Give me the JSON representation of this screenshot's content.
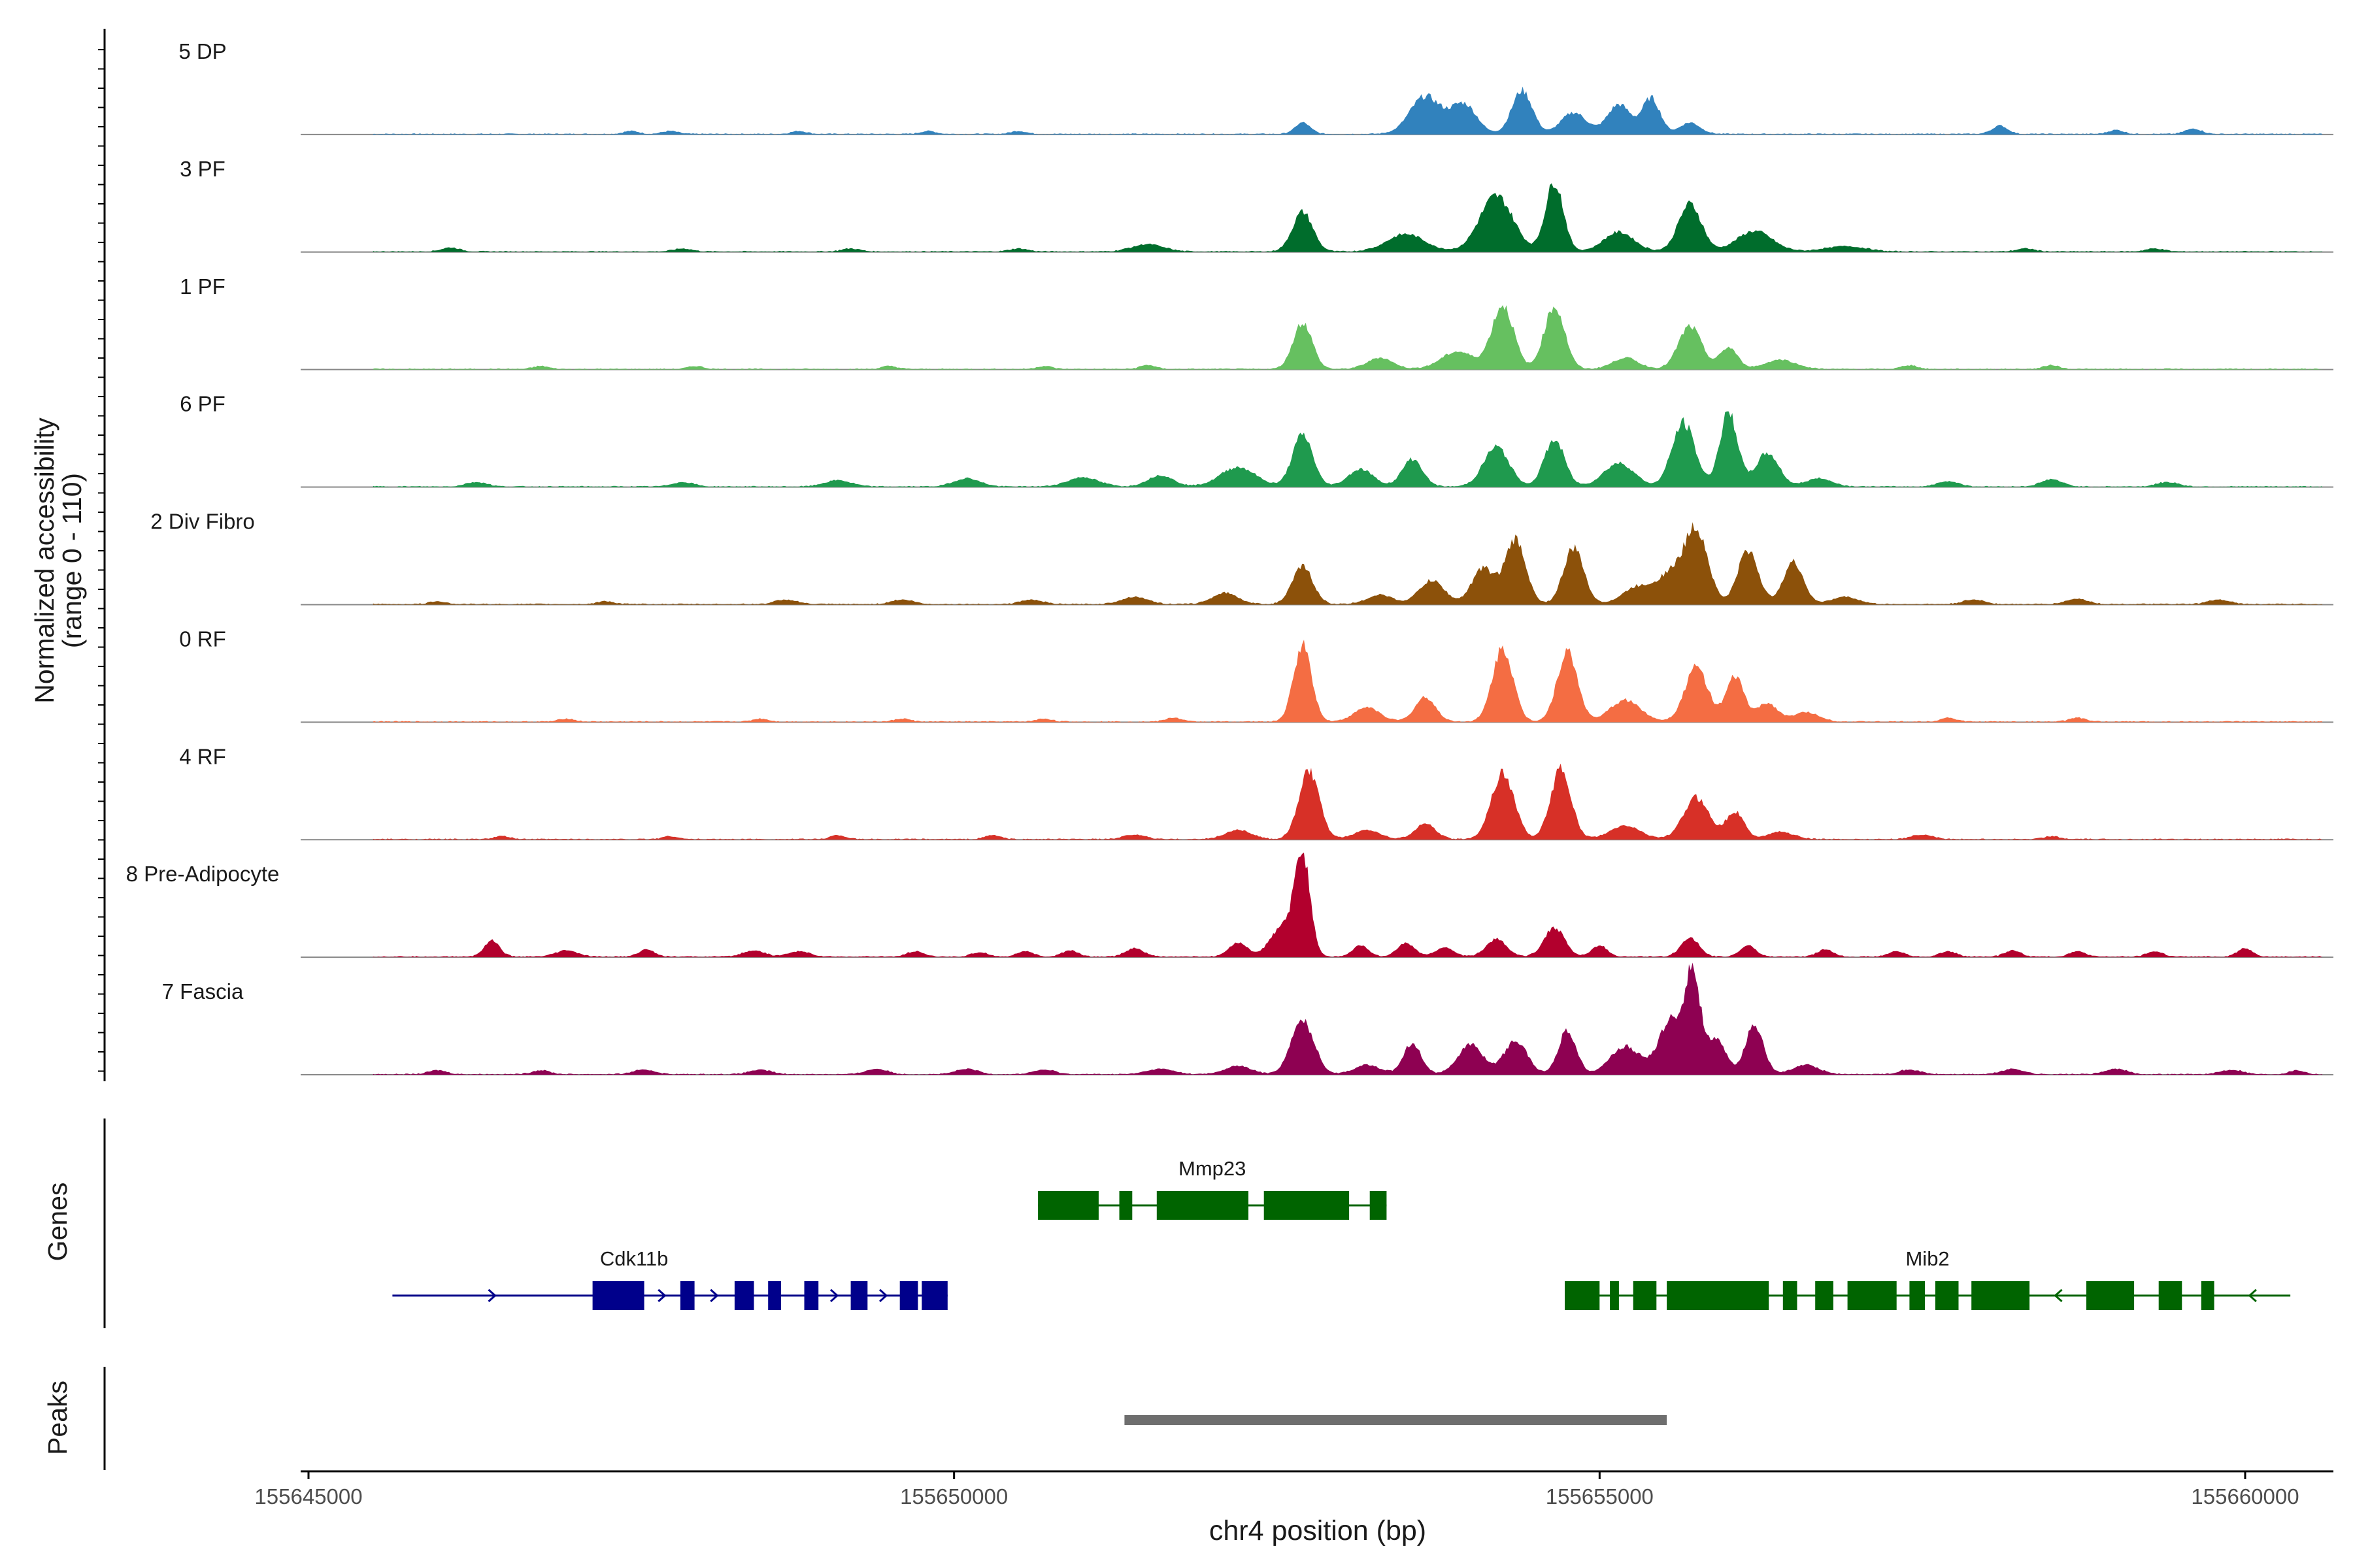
{
  "chart_data": {
    "type": "area",
    "title": "",
    "xlabel": "chr4 position (bp)",
    "ylabel_line1": "Normalized accessibility",
    "ylabel_line2": "(range 0 - 110)",
    "ylim": [
      0,
      110
    ],
    "xlim": [
      155644900,
      155661200
    ],
    "x_ticks": [
      155645000,
      155650000,
      155655000,
      155660000
    ],
    "x_tick_labels": [
      "155645000",
      "155650000",
      "155655000",
      "155660000"
    ],
    "gene_panel_title": "Genes",
    "peak_panel_title": "Peaks",
    "tracks": [
      {
        "name": "5 DP",
        "color": "#3182bd",
        "peaks": [
          [
            155647500,
            3,
            60
          ],
          [
            155647800,
            3,
            60
          ],
          [
            155648800,
            3,
            60
          ],
          [
            155649800,
            3,
            60
          ],
          [
            155650500,
            3,
            60
          ],
          [
            155652700,
            12,
            60
          ],
          [
            155653650,
            38,
            120
          ],
          [
            155653950,
            30,
            100
          ],
          [
            155654400,
            44,
            80
          ],
          [
            155654800,
            22,
            100
          ],
          [
            155655150,
            30,
            90
          ],
          [
            155655400,
            36,
            70
          ],
          [
            155655700,
            12,
            80
          ],
          [
            155658100,
            9,
            60
          ],
          [
            155659000,
            4,
            60
          ],
          [
            155659600,
            6,
            60
          ]
        ]
      },
      {
        "name": "3 PF",
        "color": "#006d2c",
        "peaks": [
          [
            155646100,
            4,
            70
          ],
          [
            155647900,
            3,
            70
          ],
          [
            155649200,
            3,
            70
          ],
          [
            155650500,
            3,
            70
          ],
          [
            155651500,
            8,
            120
          ],
          [
            155652700,
            40,
            80
          ],
          [
            155653500,
            18,
            150
          ],
          [
            155654200,
            56,
            130
          ],
          [
            155654650,
            70,
            70
          ],
          [
            155655150,
            20,
            120
          ],
          [
            155655700,
            48,
            90
          ],
          [
            155656200,
            21,
            140
          ],
          [
            155656900,
            6,
            150
          ],
          [
            155658300,
            3,
            70
          ],
          [
            155659300,
            3,
            70
          ]
        ]
      },
      {
        "name": "1 PF",
        "color": "#66c060",
        "peaks": [
          [
            155646800,
            3,
            60
          ],
          [
            155648000,
            3,
            60
          ],
          [
            155649500,
            3,
            60
          ],
          [
            155650700,
            3,
            60
          ],
          [
            155651500,
            4,
            60
          ],
          [
            155652700,
            47,
            75
          ],
          [
            155653300,
            12,
            100
          ],
          [
            155653900,
            18,
            130
          ],
          [
            155654250,
            64,
            85
          ],
          [
            155654650,
            63,
            80
          ],
          [
            155655200,
            12,
            100
          ],
          [
            155655700,
            43,
            90
          ],
          [
            155656000,
            22,
            70
          ],
          [
            155656400,
            10,
            120
          ],
          [
            155657400,
            4,
            60
          ],
          [
            155658500,
            4,
            60
          ]
        ]
      },
      {
        "name": "6 PF",
        "color": "#1f9a4e",
        "peaks": [
          [
            155646300,
            5,
            80
          ],
          [
            155647900,
            5,
            80
          ],
          [
            155649100,
            7,
            100
          ],
          [
            155650100,
            9,
            100
          ],
          [
            155651000,
            10,
            120
          ],
          [
            155651600,
            12,
            100
          ],
          [
            155652200,
            20,
            140
          ],
          [
            155652700,
            52,
            80
          ],
          [
            155653150,
            18,
            100
          ],
          [
            155653550,
            28,
            80
          ],
          [
            155654200,
            40,
            100
          ],
          [
            155654650,
            47,
            80
          ],
          [
            155655150,
            24,
            120
          ],
          [
            155655650,
            64,
            90
          ],
          [
            155656000,
            74,
            70
          ],
          [
            155656300,
            34,
            90
          ],
          [
            155656700,
            9,
            100
          ],
          [
            155657700,
            6,
            80
          ],
          [
            155658500,
            8,
            80
          ],
          [
            155659400,
            5,
            80
          ]
        ]
      },
      {
        "name": "2 Div Fibro",
        "color": "#8c510a",
        "peaks": [
          [
            155646000,
            3,
            60
          ],
          [
            155647300,
            3,
            60
          ],
          [
            155648700,
            5,
            80
          ],
          [
            155649600,
            5,
            80
          ],
          [
            155650600,
            5,
            80
          ],
          [
            155651400,
            8,
            100
          ],
          [
            155652100,
            12,
            100
          ],
          [
            155652700,
            38,
            80
          ],
          [
            155653300,
            10,
            100
          ],
          [
            155653700,
            24,
            100
          ],
          [
            155654100,
            36,
            90
          ],
          [
            155654350,
            64,
            80
          ],
          [
            155654800,
            56,
            80
          ],
          [
            155655300,
            18,
            120
          ],
          [
            155655550,
            28,
            100
          ],
          [
            155655750,
            74,
            90
          ],
          [
            155656150,
            54,
            80
          ],
          [
            155656500,
            42,
            80
          ],
          [
            155656900,
            8,
            100
          ],
          [
            155657900,
            5,
            80
          ],
          [
            155658700,
            6,
            80
          ],
          [
            155659800,
            5,
            80
          ]
        ]
      },
      {
        "name": "0 RF",
        "color": "#f46d43",
        "peaks": [
          [
            155647000,
            3,
            60
          ],
          [
            155648500,
            3,
            60
          ],
          [
            155649600,
            3,
            60
          ],
          [
            155650700,
            3,
            60
          ],
          [
            155651700,
            4,
            60
          ],
          [
            155652700,
            77,
            70
          ],
          [
            155653200,
            15,
            100
          ],
          [
            155653650,
            25,
            80
          ],
          [
            155654250,
            74,
            80
          ],
          [
            155654750,
            70,
            80
          ],
          [
            155655200,
            22,
            120
          ],
          [
            155655750,
            55,
            90
          ],
          [
            155656050,
            45,
            70
          ],
          [
            155656300,
            19,
            80
          ],
          [
            155656600,
            10,
            100
          ],
          [
            155657700,
            4,
            60
          ],
          [
            155658700,
            4,
            60
          ]
        ]
      },
      {
        "name": "4 RF",
        "color": "#d73027",
        "peaks": [
          [
            155646500,
            3,
            60
          ],
          [
            155647800,
            3,
            60
          ],
          [
            155649100,
            4,
            60
          ],
          [
            155650300,
            4,
            60
          ],
          [
            155651400,
            5,
            80
          ],
          [
            155652200,
            10,
            100
          ],
          [
            155652750,
            68,
            80
          ],
          [
            155653200,
            10,
            100
          ],
          [
            155653650,
            16,
            80
          ],
          [
            155654250,
            66,
            90
          ],
          [
            155654700,
            70,
            80
          ],
          [
            155655200,
            14,
            120
          ],
          [
            155655750,
            42,
            100
          ],
          [
            155656050,
            28,
            70
          ],
          [
            155656400,
            8,
            100
          ],
          [
            155657500,
            5,
            80
          ],
          [
            155658500,
            3,
            60
          ]
        ]
      },
      {
        "name": "8 Pre-Adipocyte",
        "color": "#b2002d",
        "peaks": [
          [
            155646420,
            17,
            60
          ],
          [
            155647000,
            7,
            80
          ],
          [
            155647620,
            8,
            60
          ],
          [
            155648450,
            7,
            80
          ],
          [
            155648800,
            6,
            80
          ],
          [
            155649700,
            6,
            60
          ],
          [
            155650200,
            5,
            60
          ],
          [
            155650550,
            6,
            60
          ],
          [
            155650900,
            7,
            60
          ],
          [
            155651400,
            9,
            70
          ],
          [
            155652200,
            15,
            70
          ],
          [
            155652550,
            30,
            100
          ],
          [
            155652700,
            95,
            60
          ],
          [
            155653150,
            12,
            60
          ],
          [
            155653500,
            14,
            70
          ],
          [
            155653800,
            10,
            70
          ],
          [
            155654200,
            18,
            80
          ],
          [
            155654650,
            30,
            80
          ],
          [
            155655000,
            12,
            60
          ],
          [
            155655700,
            20,
            70
          ],
          [
            155656150,
            12,
            60
          ],
          [
            155656750,
            8,
            60
          ],
          [
            155657300,
            6,
            60
          ],
          [
            155657700,
            6,
            60
          ],
          [
            155658200,
            7,
            60
          ],
          [
            155658700,
            6,
            60
          ],
          [
            155659300,
            6,
            60
          ],
          [
            155660000,
            9,
            60
          ]
        ]
      },
      {
        "name": "7 Fascia",
        "color": "#8e0152",
        "peaks": [
          [
            155646000,
            4,
            70
          ],
          [
            155646800,
            4,
            70
          ],
          [
            155647600,
            5,
            80
          ],
          [
            155648500,
            5,
            80
          ],
          [
            155649400,
            6,
            80
          ],
          [
            155650100,
            6,
            80
          ],
          [
            155650700,
            5,
            80
          ],
          [
            155651600,
            6,
            100
          ],
          [
            155652200,
            9,
            100
          ],
          [
            155652700,
            54,
            90
          ],
          [
            155653200,
            10,
            100
          ],
          [
            155653550,
            32,
            70
          ],
          [
            155654000,
            30,
            100
          ],
          [
            155654350,
            34,
            90
          ],
          [
            155654750,
            44,
            70
          ],
          [
            155655200,
            28,
            120
          ],
          [
            155655550,
            54,
            90
          ],
          [
            155655720,
            96,
            60
          ],
          [
            155655900,
            34,
            80
          ],
          [
            155656200,
            50,
            70
          ],
          [
            155656600,
            10,
            100
          ],
          [
            155657400,
            5,
            80
          ],
          [
            155658200,
            6,
            80
          ],
          [
            155659000,
            6,
            80
          ],
          [
            155659900,
            5,
            80
          ],
          [
            155660400,
            4,
            60
          ]
        ]
      }
    ],
    "genes": [
      {
        "name": "Mmp23",
        "row": 0,
        "strand": "+",
        "start": 155650650,
        "end": 155653350,
        "color": "#006400",
        "exons": [
          [
            155650650,
            155651120
          ],
          [
            155651280,
            155651380
          ],
          [
            155651570,
            155652280
          ],
          [
            155652400,
            155653060
          ],
          [
            155653220,
            155653350
          ]
        ]
      },
      {
        "name": "Cdk11b",
        "row": 1,
        "strand": "+",
        "start": 155645650,
        "end": 155649950,
        "color": "#00008b",
        "exons": [
          [
            155647200,
            155647600
          ],
          [
            155647880,
            155647990
          ],
          [
            155648300,
            155648450
          ],
          [
            155648560,
            155648660
          ],
          [
            155648840,
            155648950
          ],
          [
            155649200,
            155649330
          ],
          [
            155649580,
            155649720
          ],
          [
            155649750,
            155649950
          ]
        ]
      },
      {
        "name": "Mib2",
        "row": 1,
        "strand": "-",
        "start": 155654730,
        "end": 155660350,
        "color": "#006400",
        "exons": [
          [
            155654730,
            155655000
          ],
          [
            155655080,
            155655150
          ],
          [
            155655260,
            155655440
          ],
          [
            155655520,
            155656310
          ],
          [
            155656420,
            155656530
          ],
          [
            155656670,
            155656810
          ],
          [
            155656920,
            155657300
          ],
          [
            155657400,
            155657520
          ],
          [
            155657600,
            155657780
          ],
          [
            155657880,
            155658330
          ],
          [
            155658770,
            155659140
          ],
          [
            155659330,
            155659510
          ],
          [
            155659660,
            155659760
          ]
        ]
      }
    ],
    "peak_regions": [
      {
        "start": 155651320,
        "end": 155655520,
        "color": "#6e6e6e"
      }
    ]
  }
}
